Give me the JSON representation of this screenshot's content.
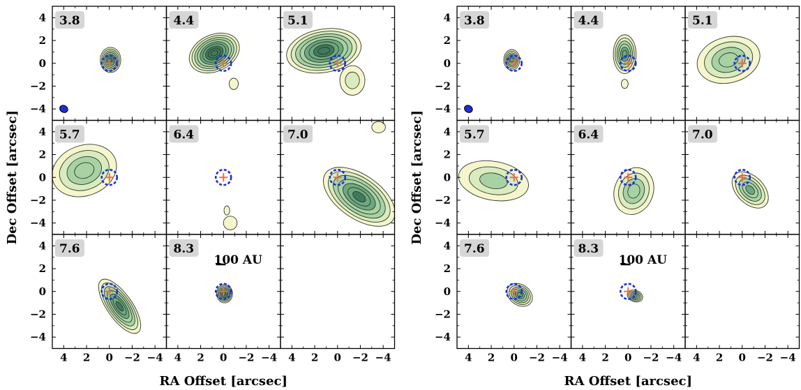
{
  "chart_data": {
    "type": "contour",
    "xlabel": "RA Offset [arcsec]",
    "ylabel": "Dec Offset [arcsec]",
    "xlim": [
      5,
      -5
    ],
    "ylim": [
      -5,
      5
    ],
    "xticks": [
      4,
      2,
      0,
      -2,
      -4
    ],
    "yticks": [
      4,
      2,
      0,
      -2,
      -4
    ],
    "scalebar_label": "100 AU",
    "colors": {
      "fill_light": "#f6f5cd",
      "fill_mid": "#d9ebbf",
      "fill_green": "#a8d2a4",
      "fill_dark": "#6ea881",
      "fill_darker": "#3f7a5c",
      "contour_line": "#2c3a2a",
      "circle": "#1f2fd6",
      "cross": "#f06a4a",
      "label_box": "#d6d6d6"
    },
    "figures": [
      {
        "panels": [
          {
            "label": "3.8",
            "beam": true,
            "blobs": [
              {
                "x": -0.1,
                "y": 0.3,
                "rx": 0.9,
                "ry": 1.1,
                "rot": 0,
                "levels": 7
              }
            ]
          },
          {
            "label": "4.4",
            "blobs": [
              {
                "x": 0.8,
                "y": 0.9,
                "rx": 2.3,
                "ry": 1.6,
                "rot": -25,
                "levels": 9
              },
              {
                "x": -0.9,
                "y": -1.8,
                "rx": 0.4,
                "ry": 0.5,
                "rot": 0,
                "levels": 1
              }
            ]
          },
          {
            "label": "5.1",
            "blobs": [
              {
                "x": 1.2,
                "y": 1.1,
                "rx": 3.3,
                "ry": 1.9,
                "rot": -10,
                "levels": 8
              },
              {
                "x": -1.3,
                "y": -1.5,
                "rx": 1.1,
                "ry": 1.3,
                "rot": 0,
                "levels": 2
              }
            ]
          },
          {
            "label": "5.7",
            "blobs": [
              {
                "x": 2.2,
                "y": 0.6,
                "rx": 2.9,
                "ry": 2.2,
                "rot": -20,
                "levels": 4
              }
            ]
          },
          {
            "label": "6.4",
            "blobs": [
              {
                "x": -0.3,
                "y": -2.9,
                "rx": 0.25,
                "ry": 0.4,
                "rot": 0,
                "levels": 1
              },
              {
                "x": -0.6,
                "y": -4.0,
                "rx": 0.6,
                "ry": 0.6,
                "rot": 0,
                "levels": 1
              }
            ]
          },
          {
            "label": "7.0",
            "blobs": [
              {
                "x": -1.9,
                "y": -1.7,
                "rx": 3.6,
                "ry": 1.9,
                "rot": 35,
                "levels": 7
              },
              {
                "x": -3.6,
                "y": 4.4,
                "rx": 0.6,
                "ry": 0.5,
                "rot": 0,
                "levels": 1
              }
            ]
          },
          {
            "label": "7.6",
            "blobs": [
              {
                "x": -0.9,
                "y": -1.3,
                "rx": 2.8,
                "ry": 1.1,
                "rot": 55,
                "levels": 7
              }
            ]
          },
          {
            "label": "8.3",
            "scalebar": true,
            "blobs": [
              {
                "x": -0.1,
                "y": -0.2,
                "rx": 0.7,
                "ry": 0.8,
                "rot": 0,
                "levels": 7
              }
            ]
          },
          {
            "label": "",
            "blobs": []
          }
        ]
      },
      {
        "panels": [
          {
            "label": "3.8",
            "beam": true,
            "blobs": [
              {
                "x": 0.2,
                "y": 0.3,
                "rx": 0.7,
                "ry": 0.9,
                "rot": 0,
                "levels": 6
              }
            ]
          },
          {
            "label": "4.4",
            "blobs": [
              {
                "x": 0.3,
                "y": 0.8,
                "rx": 1.0,
                "ry": 1.7,
                "rot": 0,
                "levels": 6
              },
              {
                "x": 0.3,
                "y": -1.8,
                "rx": 0.3,
                "ry": 0.4,
                "rot": 0,
                "levels": 1
              }
            ]
          },
          {
            "label": "5.1",
            "blobs": [
              {
                "x": 1.2,
                "y": 0.3,
                "rx": 2.8,
                "ry": 2.0,
                "rot": -15,
                "levels": 4
              }
            ]
          },
          {
            "label": "5.7",
            "blobs": [
              {
                "x": 1.8,
                "y": -0.3,
                "rx": 3.1,
                "ry": 1.7,
                "rot": 10,
                "levels": 3
              }
            ]
          },
          {
            "label": "6.4",
            "blobs": [
              {
                "x": -0.5,
                "y": -1.2,
                "rx": 1.7,
                "ry": 2.1,
                "rot": 20,
                "levels": 4
              }
            ]
          },
          {
            "label": "7.0",
            "blobs": [
              {
                "x": -0.7,
                "y": -1.1,
                "rx": 1.9,
                "ry": 1.2,
                "rot": 45,
                "levels": 5
              }
            ]
          },
          {
            "label": "7.6",
            "blobs": [
              {
                "x": -0.5,
                "y": -0.3,
                "rx": 1.2,
                "ry": 0.9,
                "rot": 35,
                "levels": 6
              }
            ]
          },
          {
            "label": "8.3",
            "scalebar": true,
            "blobs": [
              {
                "x": -0.6,
                "y": -0.4,
                "rx": 0.7,
                "ry": 0.5,
                "rot": 20,
                "levels": 5
              }
            ]
          },
          {
            "label": "",
            "blobs": []
          }
        ]
      }
    ]
  }
}
